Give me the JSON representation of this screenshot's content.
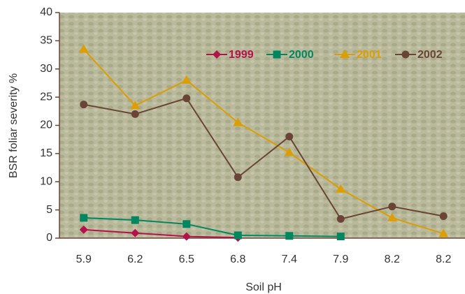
{
  "chart_data": {
    "type": "line",
    "x_label": "Soil pH",
    "y_label": "BSR foliar severity %",
    "categories": [
      "5.9",
      "6.2",
      "6.5",
      "6.8",
      "7.4",
      "7.9",
      "8.2",
      "8.2"
    ],
    "series": [
      {
        "name": "1999",
        "color": "#b3124a",
        "marker": "diamond",
        "values": [
          1.5,
          0.9,
          0.3,
          0.1,
          null,
          null,
          null,
          null
        ]
      },
      {
        "name": "2000",
        "color": "#00875f",
        "marker": "square",
        "values": [
          3.6,
          3.2,
          2.5,
          0.5,
          0.4,
          0.3,
          null,
          null
        ]
      },
      {
        "name": "2001",
        "color": "#dc9e00",
        "marker": "triangle",
        "values": [
          33.5,
          23.5,
          28,
          20.5,
          15.2,
          8.7,
          3.6,
          0.8
        ]
      },
      {
        "name": "2002",
        "color": "#6a4536",
        "marker": "circle",
        "values": [
          23.7,
          22,
          24.8,
          10.8,
          18,
          3.4,
          5.6,
          3.9
        ]
      }
    ],
    "ylim": [
      0,
      40
    ],
    "yticks": [
      0,
      5,
      10,
      15,
      20,
      25,
      30,
      35,
      40
    ],
    "grid": false
  }
}
